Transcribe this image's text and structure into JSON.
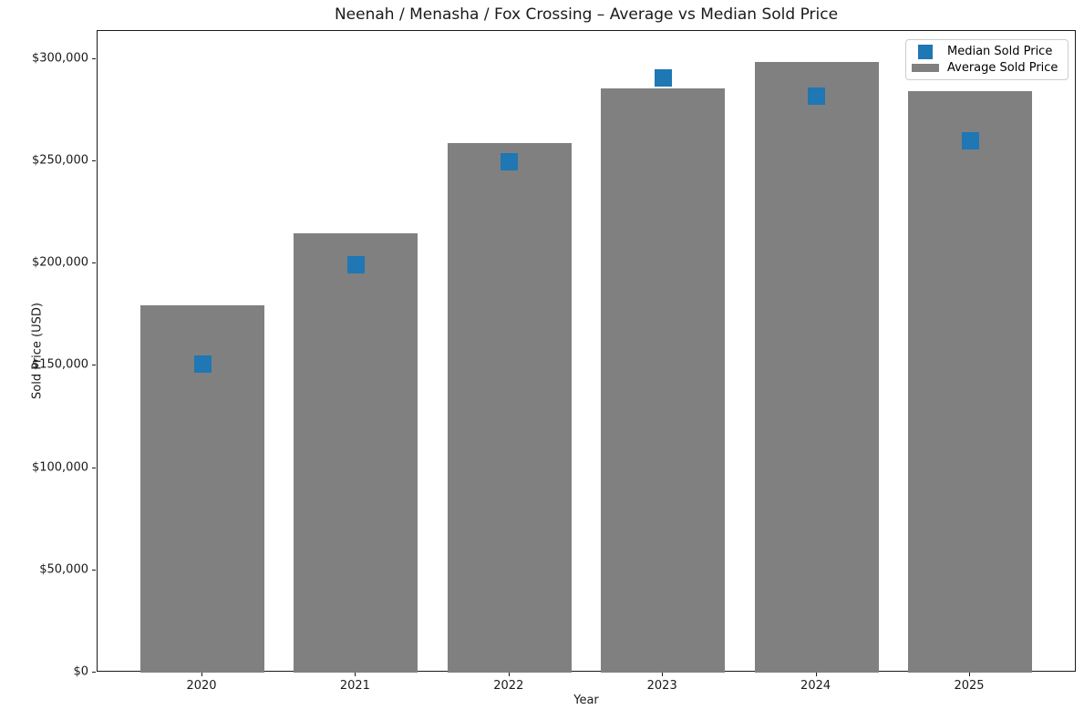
{
  "chart_data": {
    "type": "bar",
    "title": "Neenah / Menasha / Fox Crossing – Average vs Median Sold Price",
    "xlabel": "Year",
    "ylabel": "Sold Price (USD)",
    "categories": [
      "2020",
      "2021",
      "2022",
      "2023",
      "2024",
      "2025"
    ],
    "series": [
      {
        "name": "Average Sold Price",
        "kind": "bar",
        "color": "#808080",
        "values": [
          179500,
          215000,
          259000,
          285500,
          298500,
          284500
        ]
      },
      {
        "name": "Median Sold Price",
        "kind": "scatter",
        "marker": "square",
        "color": "#1f77b4",
        "values": [
          151000,
          199500,
          250000,
          291000,
          282000,
          260000
        ]
      }
    ],
    "ylim": [
      0,
      313800
    ],
    "yticks": [
      {
        "value": 0,
        "label": "$0"
      },
      {
        "value": 50000,
        "label": "$50,000"
      },
      {
        "value": 100000,
        "label": "$100,000"
      },
      {
        "value": 150000,
        "label": "$150,000"
      },
      {
        "value": 200000,
        "label": "$200,000"
      },
      {
        "value": 250000,
        "label": "$250,000"
      },
      {
        "value": 300000,
        "label": "$300,000"
      }
    ],
    "grid": false,
    "legend": {
      "position": "upper right",
      "entries": [
        {
          "label": "Median Sold Price",
          "swatch": "square",
          "color": "#1f77b4"
        },
        {
          "label": "Average Sold Price",
          "swatch": "rect",
          "color": "#808080"
        }
      ]
    }
  }
}
